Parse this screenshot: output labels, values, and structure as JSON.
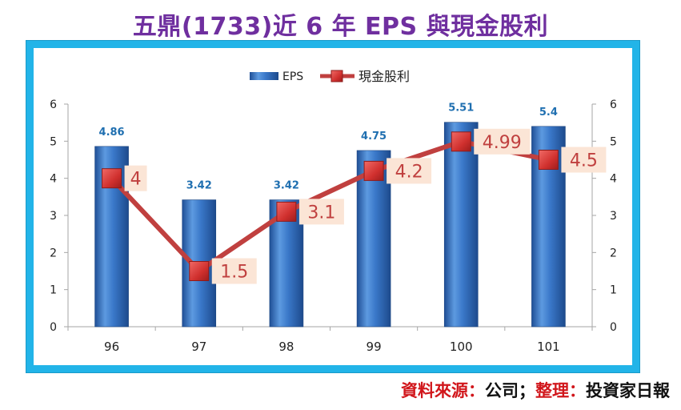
{
  "title": "五鼎(1733)近 6 年 EPS 與現金股利",
  "source": {
    "label1": "資料來源：",
    "value1": "公司；",
    "label2": "整理：",
    "value2": "投資家日報"
  },
  "colors": {
    "title": "#6f2f9f",
    "frame": "#22b4e8",
    "bar": "#3a78c9",
    "line": "#c0403f",
    "marker": "#d83a38",
    "bar_label": "#1f6fb0",
    "line_label": "#c0403f",
    "line_label_bg": "#fbe5d6",
    "source_red": "#d1161b"
  },
  "chart_data": {
    "type": "bar",
    "categories": [
      "96",
      "97",
      "98",
      "99",
      "100",
      "101"
    ],
    "series": [
      {
        "name": "EPS",
        "type": "bar",
        "values": [
          4.86,
          3.42,
          3.42,
          4.75,
          5.51,
          5.4
        ],
        "labels": [
          "4.86",
          "3.42",
          "3.42",
          "4.75",
          "5.51",
          "5.4"
        ]
      },
      {
        "name": "現金股利",
        "type": "line",
        "values": [
          4,
          1.5,
          3.1,
          4.2,
          4.99,
          4.5
        ],
        "labels": [
          "4",
          "1.5",
          "3.1",
          "4.2",
          "4.99",
          "4.5"
        ]
      }
    ],
    "ylim": [
      0,
      6
    ],
    "yticks": [
      "0",
      "1",
      "2",
      "3",
      "4",
      "5",
      "6"
    ],
    "y2ticks": [
      "0",
      "1",
      "2",
      "3",
      "4",
      "5",
      "6"
    ],
    "legend_position": "top-center",
    "grid": false
  }
}
